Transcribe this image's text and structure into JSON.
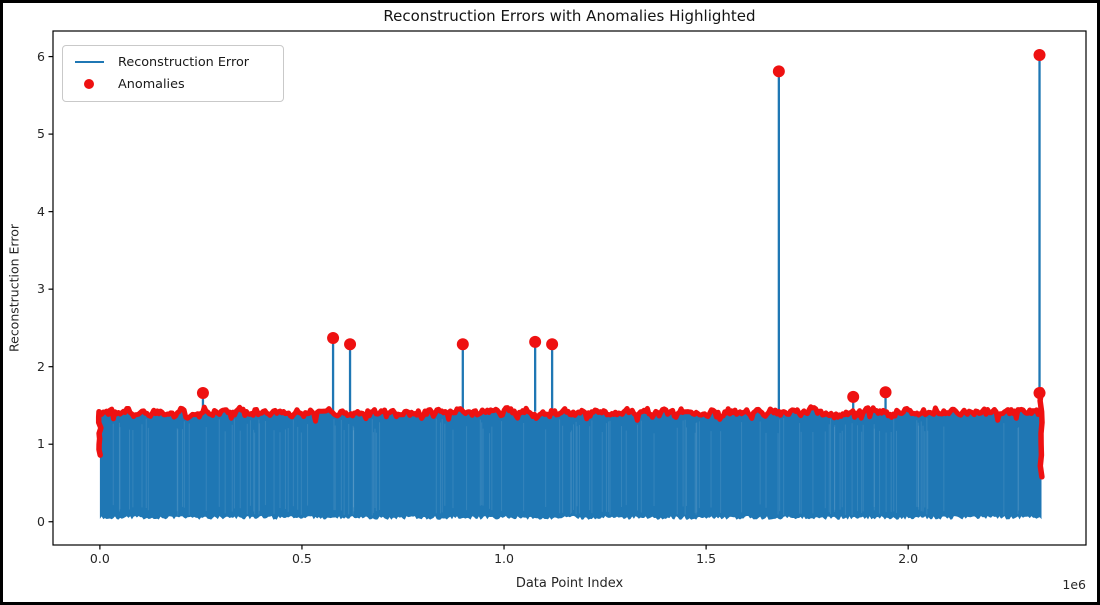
{
  "figure": {
    "background_color": "#ffffff",
    "frame_border_color": "#000000",
    "axes_spine_color": "#000000"
  },
  "chart_data": {
    "type": "line",
    "title": "Reconstruction Errors with Anomalies Highlighted",
    "xlabel": "Data Point Index",
    "ylabel": "Reconstruction Error",
    "x_axis_offset_label": "1e6",
    "grid": false,
    "xlim": [
      -116000,
      2440000
    ],
    "ylim": [
      -0.3,
      6.33
    ],
    "xticks": {
      "values": [
        0,
        500000,
        1000000,
        1500000,
        2000000
      ],
      "labels": [
        "0.0",
        "0.5",
        "1.0",
        "1.5",
        "2.0"
      ]
    },
    "yticks": {
      "values": [
        0,
        1,
        2,
        3,
        4,
        5,
        6
      ],
      "labels": [
        "0",
        "1",
        "2",
        "3",
        "4",
        "5",
        "6"
      ]
    },
    "legend": {
      "position": "upper-left",
      "items": [
        {
          "label": "Reconstruction Error",
          "marker": "line",
          "color": "#1f77b4"
        },
        {
          "label": "Anomalies",
          "marker": "dot",
          "color": "#ee1111"
        }
      ]
    },
    "series": [
      {
        "name": "Reconstruction Error",
        "type": "noisy-band",
        "color": "#1f77b4",
        "x_range": [
          0,
          2330000
        ],
        "band_bottom_mean": 0.05,
        "band_top_mean": 1.4,
        "band_top_noise": 0.07,
        "description": "dense high-frequency signal filling from ~0.05 to ~1.4 across the full x range"
      },
      {
        "name": "Anomalies",
        "type": "scatter",
        "color": "#ee1111",
        "marker_size": 6,
        "dense_edge": {
          "description": "overlapping red markers tracing the noisy top edge of the band",
          "y_mean": 1.41,
          "x_range": [
            0,
            2330000
          ]
        },
        "edge_trails": [
          {
            "x": 0,
            "y_top": 1.42,
            "y_bottom": 0.86
          },
          {
            "x": 2330000,
            "y_top": 1.7,
            "y_bottom": 0.58
          }
        ],
        "points": [
          {
            "x": 255000,
            "y": 1.66
          },
          {
            "x": 577000,
            "y": 2.37
          },
          {
            "x": 619000,
            "y": 2.29
          },
          {
            "x": 898000,
            "y": 2.29
          },
          {
            "x": 1077000,
            "y": 2.32
          },
          {
            "x": 1119000,
            "y": 2.29
          },
          {
            "x": 1680000,
            "y": 5.81
          },
          {
            "x": 1864000,
            "y": 1.61
          },
          {
            "x": 1944000,
            "y": 1.67
          },
          {
            "x": 2325000,
            "y": 6.02
          },
          {
            "x": 2325000,
            "y": 1.66
          }
        ]
      }
    ]
  }
}
